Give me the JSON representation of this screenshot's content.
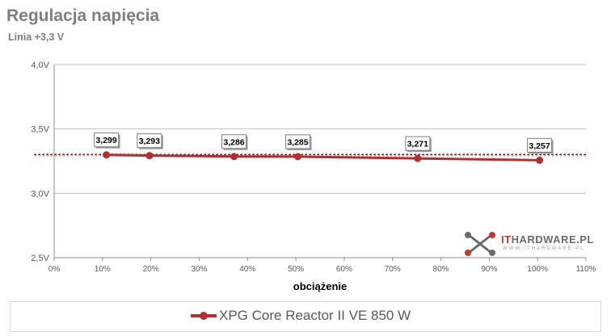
{
  "title": "Regulacja napięcia",
  "subtitle": "Linia +3,3 V",
  "logo": {
    "it": "IT",
    "rest": "HARDWARE.PL",
    "sub": "WWW.ITHARDWARE.PL",
    "icon": "cross-cables-icon"
  },
  "colors": {
    "series": "#b22f2f",
    "grid": "#bfbfbf",
    "reference": "#c00000",
    "text": "#595959"
  },
  "chart_data": {
    "type": "line",
    "title": "Regulacja napięcia",
    "subtitle": "Linia +3,3 V",
    "xlabel": "obciążenie",
    "ylabel": "",
    "xlim": [
      0,
      110
    ],
    "ylim": [
      2.5,
      4.0
    ],
    "x_ticks": [
      "0%",
      "10%",
      "20%",
      "30%",
      "40%",
      "50%",
      "60%",
      "70%",
      "80%",
      "90%",
      "100%",
      "110%"
    ],
    "y_ticks": [
      "2,5V",
      "3,0V",
      "3,5V",
      "4,0V"
    ],
    "reference_line": 3.3,
    "legend_position": "bottom",
    "grid": true,
    "series": [
      {
        "name": "XPG Core Reactor II VE 850 W",
        "x": [
          10.8,
          19.7,
          37.2,
          50.4,
          75.2,
          100.4
        ],
        "values": [
          3.299,
          3.293,
          3.286,
          3.285,
          3.271,
          3.257
        ],
        "labels": [
          "3,299",
          "3,293",
          "3,286",
          "3,285",
          "3,271",
          "3,257"
        ]
      }
    ]
  }
}
